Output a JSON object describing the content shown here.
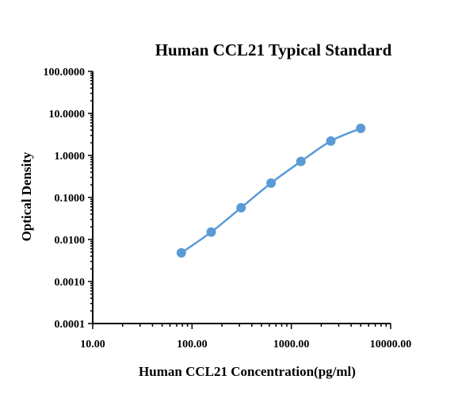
{
  "chart_data": {
    "type": "line",
    "title": "Human CCL21  Typical Standard",
    "xlabel": "Human CCL21 Concentration(pg/ml)",
    "ylabel": "Optical Density",
    "x_scale": "log",
    "y_scale": "log",
    "xlim": [
      10,
      10000
    ],
    "ylim": [
      0.0001,
      100
    ],
    "x_tick_labels": [
      "10.00",
      "100.00",
      "1000.00",
      "10000.00"
    ],
    "y_tick_labels": [
      "0.0001",
      "0.0010",
      "0.0100",
      "0.1000",
      "1.0000",
      "10.0000",
      "100.0000"
    ],
    "grid": false,
    "series": [
      {
        "color": "#5b9bd5",
        "x": [
          78,
          156,
          312,
          625,
          1250,
          2500,
          5000
        ],
        "y": [
          0.0048,
          0.015,
          0.057,
          0.22,
          0.72,
          2.2,
          4.4
        ]
      }
    ]
  }
}
